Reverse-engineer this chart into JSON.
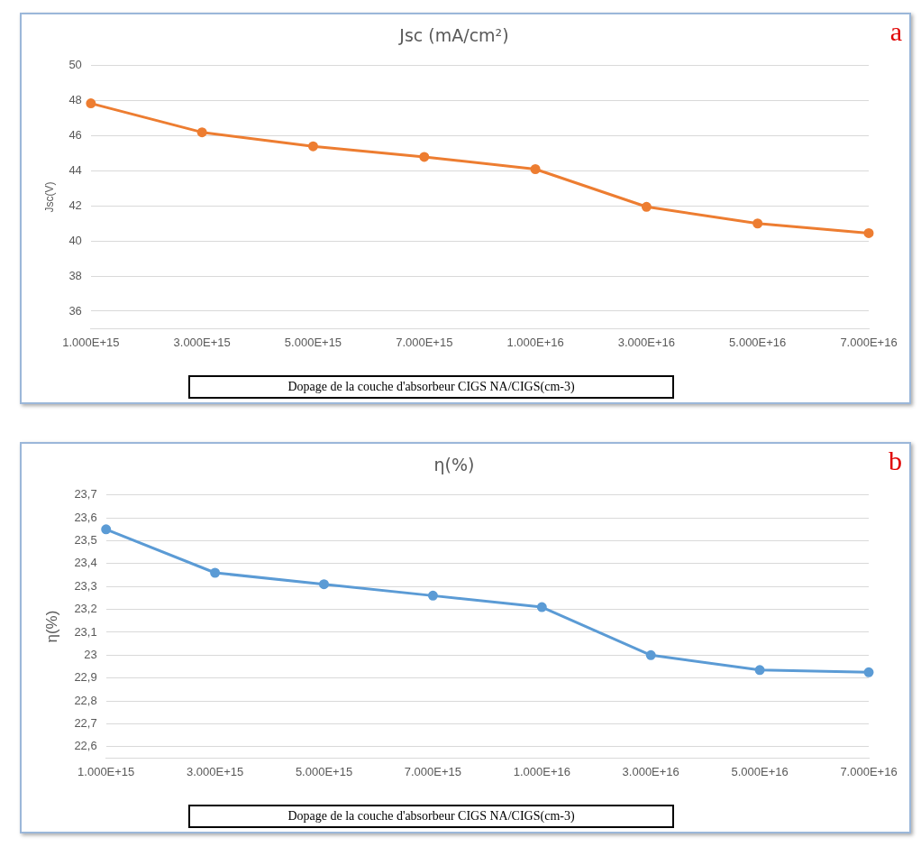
{
  "chart_data": [
    {
      "type": "line",
      "title": "Jsc (mA/cm²)",
      "ylabel": "Jsc(V)",
      "xlabel": "Dopage de la couche d'absorbeur CIGS NA/CIGS(cm-3)",
      "annotations": [
        "a"
      ],
      "categories": [
        "1.000E+15",
        "3.000E+15",
        "5.000E+15",
        "7.000E+15",
        "1.000E+16",
        "3.000E+16",
        "5.000E+16",
        "7.000E+16"
      ],
      "series": [
        {
          "color": "#ed7d31",
          "values": [
            47.85,
            46.2,
            45.4,
            44.8,
            44.1,
            41.95,
            41.0,
            40.45
          ]
        }
      ],
      "ylim": [
        35,
        50
      ],
      "yticks": [
        36,
        38,
        40,
        42,
        44,
        46,
        48,
        50
      ],
      "grid": "y",
      "legend": false,
      "marker": "circle",
      "line_style": "solid"
    },
    {
      "type": "line",
      "title": "η(%)",
      "ylabel": "η(%)",
      "xlabel": "Dopage de la couche d'absorbeur CIGS NA/CIGS(cm-3)",
      "annotations": [
        "b"
      ],
      "categories": [
        "1.000E+15",
        "3.000E+15",
        "5.000E+15",
        "7.000E+15",
        "1.000E+16",
        "3.000E+16",
        "5.000E+16",
        "7.000E+16"
      ],
      "series": [
        {
          "color": "#5b9bd5",
          "values": [
            23.55,
            23.36,
            23.31,
            23.26,
            23.21,
            23.0,
            22.935,
            22.925
          ]
        }
      ],
      "ylim": [
        22.55,
        23.7
      ],
      "yticks": [
        {
          "value": 22.6,
          "label": "22,6"
        },
        {
          "value": 22.7,
          "label": "22,7"
        },
        {
          "value": 22.8,
          "label": "22,8"
        },
        {
          "value": 22.9,
          "label": "22,9"
        },
        {
          "value": 23,
          "label": "23"
        },
        {
          "value": 23.1,
          "label": "23,1"
        },
        {
          "value": 23.2,
          "label": "23,2"
        },
        {
          "value": 23.3,
          "label": "23,3"
        },
        {
          "value": 23.4,
          "label": "23,4"
        },
        {
          "value": 23.5,
          "label": "23,5"
        },
        {
          "value": 23.6,
          "label": "23,6"
        },
        {
          "value": 23.7,
          "label": "23,7"
        }
      ],
      "grid": "y",
      "legend": false,
      "marker": "circle",
      "line_style": "solid"
    }
  ]
}
